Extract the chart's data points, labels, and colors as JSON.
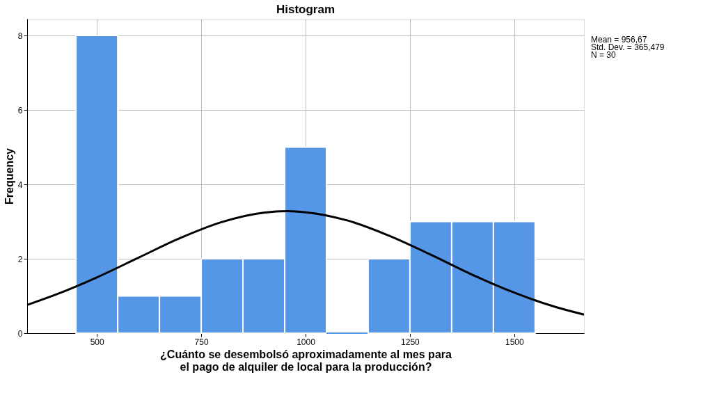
{
  "chart_data": {
    "type": "histogram",
    "title": "Histogram",
    "xlabel": "¿Cuánto se desembolsó aproximadamente al mes para el pago de alquiler de local para la producción?",
    "ylabel": "Frequency",
    "bins": [
      450,
      550,
      650,
      750,
      850,
      950,
      1050,
      1150,
      1250,
      1350,
      1450,
      1550
    ],
    "values": [
      8,
      1,
      1,
      2,
      2,
      5,
      0,
      2,
      3,
      3,
      3
    ],
    "color": "#5596e6",
    "series": [
      {
        "type": "line",
        "color": "#000000",
        "x": [
          333,
          400,
          500,
          600,
          700,
          800,
          900,
          957,
          1000,
          1100,
          1200,
          1300,
          1400,
          1500,
          1600,
          1667
        ],
        "values": [
          0.76,
          1.03,
          1.5,
          2.03,
          2.56,
          2.99,
          3.24,
          3.28,
          3.25,
          3.03,
          2.62,
          2.11,
          1.57,
          1.09,
          0.7,
          0.5
        ]
      }
    ],
    "xlim": [
      333,
      1667
    ],
    "xticks": [
      500,
      750,
      1000,
      1250,
      1500
    ],
    "ylim": [
      0,
      8.45
    ],
    "yticks": [
      0,
      2,
      4,
      6,
      8
    ],
    "grid": true,
    "annotations": [
      "Mean = 956,67",
      "Std. Dev. = 365,479",
      "N = 30"
    ]
  }
}
